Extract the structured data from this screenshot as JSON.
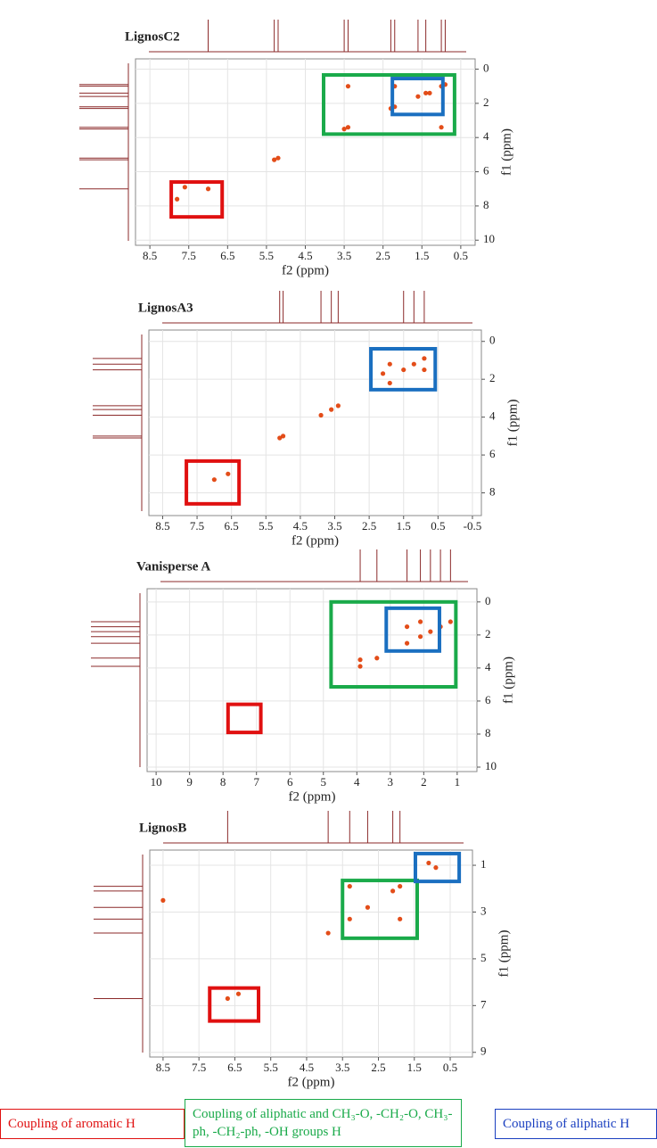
{
  "chart_data": [
    {
      "type": "scatter",
      "title": "LignosC2",
      "xlabel": "f2 (ppm)",
      "ylabel": "f1 (ppm)",
      "xlim": [
        8.87,
        0.13
      ],
      "ylim": [
        -0.6,
        10.3
      ],
      "xticks": [
        {
          "value": 8.5,
          "label": "8.5"
        },
        {
          "value": 7.5,
          "label": "7.5"
        },
        {
          "value": 6.5,
          "label": "6.5"
        },
        {
          "value": 5.5,
          "label": "5.5"
        },
        {
          "value": 4.5,
          "label": "4.5"
        },
        {
          "value": 3.5,
          "label": "3.5"
        },
        {
          "value": 2.5,
          "label": "2.5"
        },
        {
          "value": 1.5,
          "label": "1.5"
        },
        {
          "value": 0.5,
          "label": "0.5"
        }
      ],
      "yticks": [
        0,
        2,
        4,
        6,
        8,
        10
      ],
      "grid": true,
      "projection_color": "#8b2a2a",
      "points": {
        "color": "#e03a00",
        "x": [
          5.2,
          5.3,
          3.5,
          3.4,
          2.3,
          2.2,
          1.6,
          1.4,
          1.0,
          0.9,
          3.4,
          1.0,
          2.2,
          7.6,
          7.0,
          7.8,
          1.3
        ],
        "y": [
          5.2,
          5.3,
          3.5,
          3.4,
          2.3,
          2.2,
          1.6,
          1.4,
          1.0,
          0.9,
          1.0,
          3.4,
          1.0,
          6.9,
          7.0,
          7.6,
          1.4
        ]
      },
      "regions": [
        {
          "color": "#1aaa4a",
          "x": [
            4.03,
            0.66
          ],
          "y": [
            0.34,
            3.8
          ]
        },
        {
          "color": "#1a6fc0",
          "x": [
            2.26,
            0.96
          ],
          "y": [
            0.55,
            2.65
          ]
        },
        {
          "color": "#e01010",
          "x": [
            7.95,
            6.64
          ],
          "y": [
            6.6,
            8.64
          ]
        }
      ]
    },
    {
      "type": "scatter",
      "title": "LignosA3",
      "xlabel": "f2 (ppm)",
      "ylabel": "f1 (ppm)",
      "xlim": [
        8.9,
        -0.76
      ],
      "ylim": [
        -0.6,
        9.2
      ],
      "xticks": [
        {
          "value": 8.5,
          "label": "8.5"
        },
        {
          "value": 7.5,
          "label": "7.5"
        },
        {
          "value": 6.5,
          "label": "6.5"
        },
        {
          "value": 5.5,
          "label": "5.5"
        },
        {
          "value": 4.5,
          "label": "4.5"
        },
        {
          "value": 3.5,
          "label": "3.5"
        },
        {
          "value": 2.5,
          "label": "2.5"
        },
        {
          "value": 1.5,
          "label": "1.5"
        },
        {
          "value": 0.5,
          "label": "0.5"
        },
        {
          "value": -0.5,
          "label": "-0.5"
        }
      ],
      "yticks": [
        0,
        2,
        4,
        6,
        8
      ],
      "grid": true,
      "projection_color": "#8b2a2a",
      "points": {
        "color": "#e03a00",
        "x": [
          5.1,
          5.0,
          3.9,
          3.6,
          3.4,
          2.1,
          1.9,
          1.5,
          1.2,
          0.9,
          1.9,
          0.9,
          7.0,
          6.6
        ],
        "y": [
          5.1,
          5.0,
          3.9,
          3.6,
          3.4,
          1.7,
          2.2,
          1.5,
          1.2,
          0.9,
          1.2,
          1.5,
          7.3,
          7.0
        ]
      },
      "regions": [
        {
          "color": "#1a6fc0",
          "x": [
            2.45,
            0.58
          ],
          "y": [
            0.39,
            2.55
          ]
        },
        {
          "color": "#e01010",
          "x": [
            7.81,
            6.28
          ],
          "y": [
            6.32,
            8.58
          ]
        }
      ]
    },
    {
      "type": "scatter",
      "title": "Vanisperse A",
      "xlabel": "f2 (ppm)",
      "ylabel": "f1 (ppm)",
      "xlim": [
        10.27,
        0.41
      ],
      "ylim": [
        -0.8,
        10.27
      ],
      "xticks": [
        10,
        9,
        8,
        7,
        6,
        5,
        4,
        3,
        2,
        1
      ],
      "yticks": [
        0,
        2,
        4,
        6,
        8,
        10
      ],
      "grid": true,
      "projection_color": "#8b2a2a",
      "points": {
        "color": "#e03a00",
        "x": [
          3.9,
          3.4,
          2.5,
          2.1,
          1.8,
          1.5,
          1.2,
          2.5,
          3.9,
          2.1
        ],
        "y": [
          3.9,
          3.4,
          2.5,
          2.1,
          1.8,
          1.5,
          1.2,
          1.5,
          3.5,
          1.2
        ]
      },
      "regions": [
        {
          "color": "#1aaa4a",
          "x": [
            4.77,
            1.04
          ],
          "y": [
            0,
            5.14
          ]
        },
        {
          "color": "#1a6fc0",
          "x": [
            3.12,
            1.53
          ],
          "y": [
            0.38,
            2.97
          ]
        },
        {
          "color": "#e01010",
          "x": [
            7.85,
            6.87
          ],
          "y": [
            6.2,
            7.9
          ]
        }
      ]
    },
    {
      "type": "scatter",
      "title": "LignosB",
      "xlabel": "f2 (ppm)",
      "ylabel": "f1 (ppm)",
      "xlim": [
        8.87,
        -0.12
      ],
      "ylim": [
        0.35,
        9.2
      ],
      "xticks": [
        {
          "value": 8.5,
          "label": "8.5"
        },
        {
          "value": 7.5,
          "label": "7.5"
        },
        {
          "value": 6.5,
          "label": "6.5"
        },
        {
          "value": 5.5,
          "label": "5.5"
        },
        {
          "value": 4.5,
          "label": "4.5"
        },
        {
          "value": 3.5,
          "label": "3.5"
        },
        {
          "value": 2.5,
          "label": "2.5"
        },
        {
          "value": 1.5,
          "label": "1.5"
        },
        {
          "value": 0.5,
          "label": "0.5"
        }
      ],
      "yticks": [
        1,
        3,
        5,
        7,
        9
      ],
      "grid": true,
      "projection_color": "#8b2a2a",
      "points": {
        "color": "#e03a00",
        "x": [
          3.3,
          3.3,
          2.1,
          1.9,
          1.9,
          1.1,
          0.9,
          2.8,
          3.9,
          6.7,
          6.4,
          8.5
        ],
        "y": [
          3.3,
          1.9,
          2.1,
          1.9,
          3.3,
          0.9,
          1.1,
          2.8,
          3.9,
          6.7,
          6.5,
          2.5
        ]
      },
      "regions": [
        {
          "color": "#1aaa4a",
          "x": [
            3.5,
            1.42
          ],
          "y": [
            1.65,
            4.12
          ]
        },
        {
          "color": "#1a6fc0",
          "x": [
            1.47,
            0.25
          ],
          "y": [
            0.5,
            1.69
          ]
        },
        {
          "color": "#e01010",
          "x": [
            7.2,
            5.84
          ],
          "y": [
            6.25,
            7.66
          ]
        }
      ]
    }
  ],
  "legend": [
    {
      "text": "Coupling of aromatic H",
      "color": "#e01010"
    },
    {
      "text": "Coupling of aliphatic and CH₃-O, -CH₂-O, CH₃-ph, -CH₂-ph, -OH groups H",
      "color": "#1aaa4a"
    },
    {
      "text": "Coupling of aliphatic H",
      "color": "#1a3fc0"
    }
  ]
}
